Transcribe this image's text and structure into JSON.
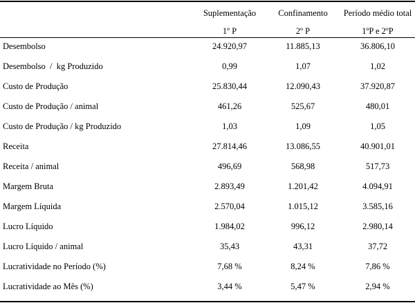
{
  "table": {
    "headers": [
      {
        "line1": "Suplementação",
        "line2": "1º P"
      },
      {
        "line1": "Confinamento",
        "line2": "2º P"
      },
      {
        "line1": "Período médio total",
        "line2": "1ºP e 2ºP"
      }
    ],
    "rows": [
      {
        "label": "Desembolso",
        "values": [
          "24.920,97",
          "11.885,13",
          "36.806,10"
        ]
      },
      {
        "label": "Desembolso  /  kg Produzido",
        "values": [
          "0,99",
          "1,07",
          "1,02"
        ]
      },
      {
        "label": "Custo de Produção",
        "values": [
          "25.830,44",
          "12.090,43",
          "37.920,87"
        ]
      },
      {
        "label": "Custo de Produção / animal",
        "values": [
          "461,26",
          "525,67",
          "480,01"
        ]
      },
      {
        "label": "Custo de Produção / kg Produzido",
        "values": [
          "1,03",
          "1,09",
          "1,05"
        ]
      },
      {
        "label": "Receita",
        "values": [
          "27.814,46",
          "13.086,55",
          "40.901,01"
        ]
      },
      {
        "label": "Receita / animal",
        "values": [
          "496,69",
          "568,98",
          "517,73"
        ]
      },
      {
        "label": "Margem Bruta",
        "values": [
          "2.893,49",
          "1.201,42",
          "4.094,91"
        ]
      },
      {
        "label": "Margem Líquida",
        "values": [
          "2.570,04",
          "1.015,12",
          "3.585,16"
        ]
      },
      {
        "label": "Lucro Líquido",
        "values": [
          "1.984,02",
          "996,12",
          "2.980,14"
        ]
      },
      {
        "label": "Lucro Líquido / animal",
        "values": [
          "35,43",
          "43,31",
          "37,72"
        ]
      },
      {
        "label": "Lucratividade no Período (%)",
        "values": [
          "7,68 %",
          "8,24 %",
          "7,86 %"
        ]
      },
      {
        "label": "Lucratividade ao Mês (%)",
        "values": [
          "3,44 %",
          "5,47 %",
          "2,94 %"
        ]
      }
    ]
  }
}
